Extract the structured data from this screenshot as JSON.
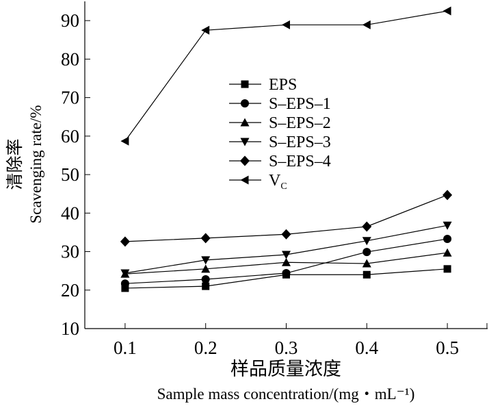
{
  "chart_data": {
    "type": "line",
    "title": "",
    "xlabel_cn": "样品质量浓度",
    "xlabel": "Sample mass concentration/(mg・mL⁻¹)",
    "ylabel_cn": "清除率",
    "ylabel": "Scavenging rate/%",
    "xlim": [
      0.05,
      0.55
    ],
    "ylim": [
      10,
      95
    ],
    "x": [
      0.1,
      0.2,
      0.3,
      0.4,
      0.5
    ],
    "xticks": [
      "0.1",
      "0.2",
      "0.3",
      "0.4",
      "0.5"
    ],
    "yticks": [
      10,
      20,
      30,
      40,
      50,
      60,
      70,
      80,
      90
    ],
    "grid": false,
    "legend_position": "center",
    "series": [
      {
        "name": "EPS",
        "marker": "square",
        "values": [
          20.5,
          21.0,
          24.0,
          24.0,
          25.5
        ]
      },
      {
        "name": "S-EPS-1",
        "marker": "circle",
        "values": [
          21.7,
          22.8,
          24.4,
          29.9,
          33.3
        ]
      },
      {
        "name": "S-EPS-2",
        "marker": "triangle-up",
        "values": [
          24.2,
          25.5,
          27.2,
          26.9,
          29.7
        ]
      },
      {
        "name": "S-EPS-3",
        "marker": "triangle-down",
        "values": [
          24.4,
          27.8,
          29.2,
          32.8,
          36.8
        ]
      },
      {
        "name": "S-EPS-4",
        "marker": "diamond",
        "values": [
          32.6,
          33.5,
          34.5,
          36.5,
          44.7
        ]
      },
      {
        "name": "VC",
        "marker": "triangle-left",
        "values": [
          58.7,
          87.5,
          88.9,
          88.9,
          92.5
        ]
      }
    ]
  }
}
